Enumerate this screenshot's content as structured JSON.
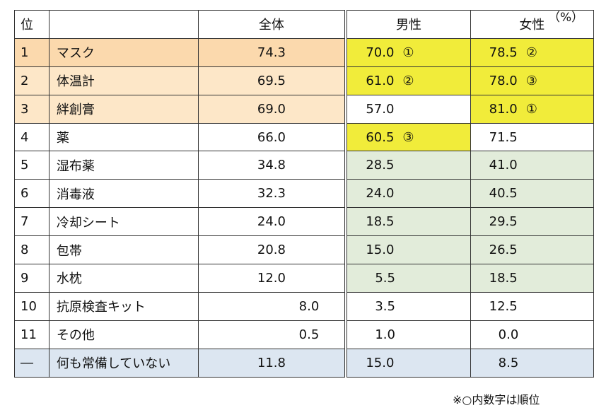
{
  "unit_label": "（%）",
  "note": "※○内数字は順位",
  "headers": {
    "rank": "位",
    "item": "",
    "all": "全体",
    "male": "男性",
    "female": "女性"
  },
  "rows": [
    {
      "rank": "1",
      "item": "マスク",
      "all": "74.3",
      "male": "70.0",
      "male_mark": "①",
      "female": "78.5",
      "female_mark": "②"
    },
    {
      "rank": "2",
      "item": "体温計",
      "all": "69.5",
      "male": "61.0",
      "male_mark": "②",
      "female": "78.0",
      "female_mark": "③"
    },
    {
      "rank": "3",
      "item": "絆創膏",
      "all": "69.0",
      "male": "57.0",
      "male_mark": "",
      "female": "81.0",
      "female_mark": "①"
    },
    {
      "rank": "4",
      "item": "薬",
      "all": "66.0",
      "male": "60.5",
      "male_mark": "③",
      "female": "71.5",
      "female_mark": ""
    },
    {
      "rank": "5",
      "item": "湿布薬",
      "all": "34.8",
      "male": "28.5",
      "male_mark": "",
      "female": "41.0",
      "female_mark": ""
    },
    {
      "rank": "6",
      "item": "消毒液",
      "all": "32.3",
      "male": "24.0",
      "male_mark": "",
      "female": "40.5",
      "female_mark": ""
    },
    {
      "rank": "7",
      "item": "冷却シート",
      "all": "24.0",
      "male": "18.5",
      "male_mark": "",
      "female": "29.5",
      "female_mark": ""
    },
    {
      "rank": "8",
      "item": "包帯",
      "all": "20.8",
      "male": "15.0",
      "male_mark": "",
      "female": "26.5",
      "female_mark": ""
    },
    {
      "rank": "9",
      "item": "水枕",
      "all": "12.0",
      "male": "5.5",
      "male_mark": "",
      "female": "18.5",
      "female_mark": ""
    },
    {
      "rank": "10",
      "item": "抗原検査キット",
      "all": "8.0",
      "male": "3.5",
      "male_mark": "",
      "female": "12.5",
      "female_mark": ""
    },
    {
      "rank": "11",
      "item": "その他",
      "all": "0.5",
      "male": "1.0",
      "male_mark": "",
      "female": "0.0",
      "female_mark": ""
    },
    {
      "rank": "―",
      "item": "何も常備していない",
      "all": "11.8",
      "male": "15.0",
      "male_mark": "",
      "female": "8.5",
      "female_mark": ""
    }
  ],
  "colors": {
    "top_orange": "#fbd9ad",
    "orange_light": "#fde7c8",
    "yellow": "#f1ec3a",
    "green": "#e2ecda",
    "blue": "#dce6f1"
  }
}
